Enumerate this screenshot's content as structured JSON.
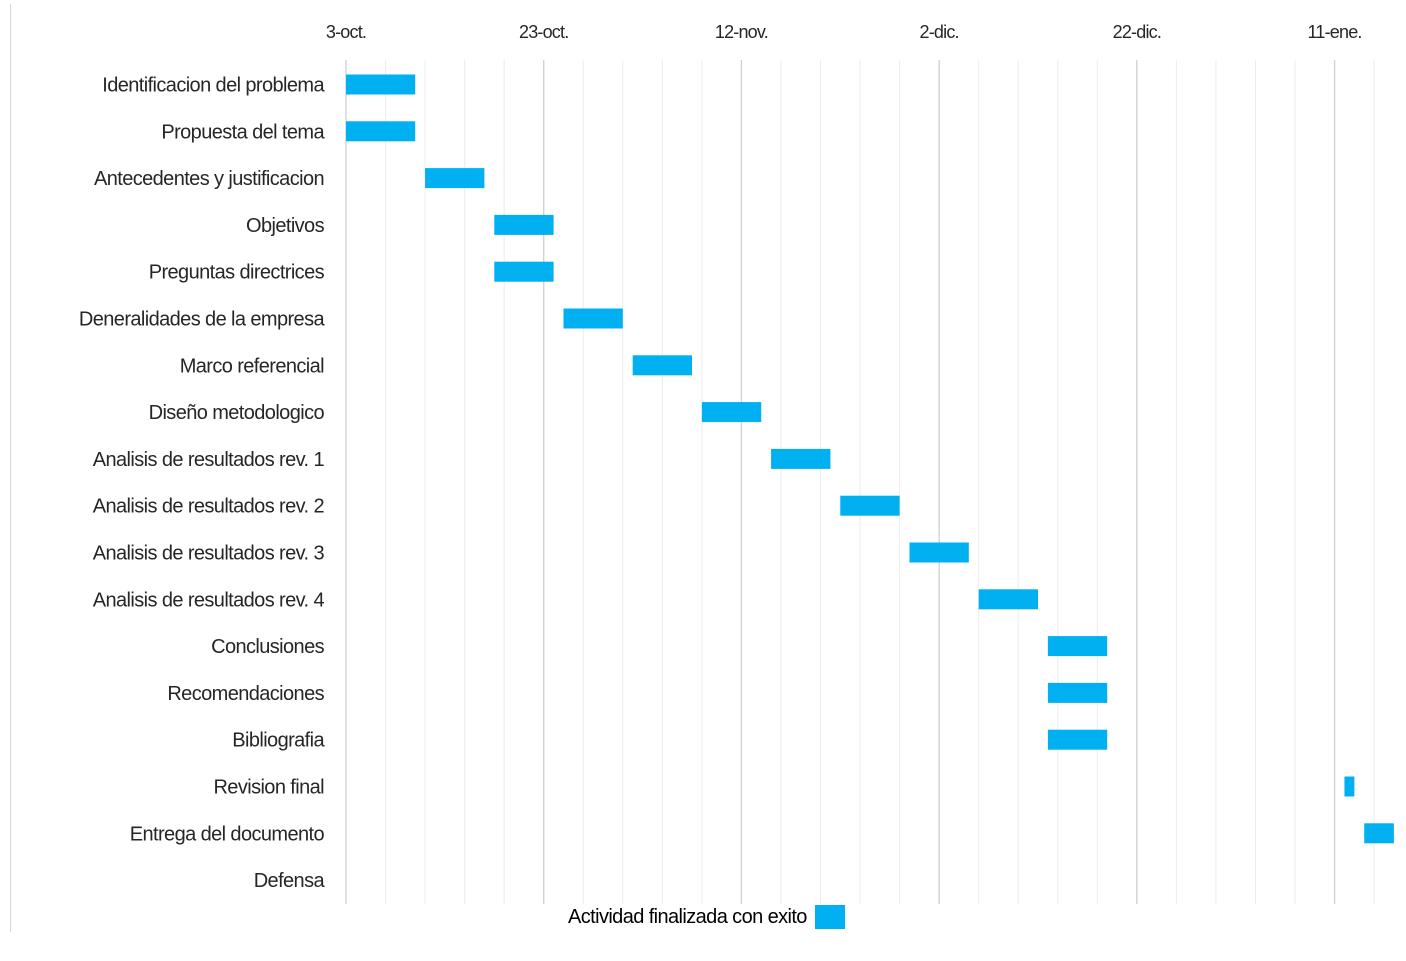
{
  "chart_data": {
    "type": "gantt",
    "x_axis": {
      "type": "date",
      "min": "2023-10-03",
      "max": "2024-01-16",
      "major_ticks": [
        "2023-10-03",
        "2023-10-23",
        "2023-11-12",
        "2023-12-02",
        "2023-12-22",
        "2024-01-11"
      ],
      "tick_labels": [
        "3-oct.",
        "23-oct.",
        "12-nov.",
        "2-dic.",
        "22-dic.",
        "11-ene."
      ],
      "minor_grid_days": 4,
      "position": "top",
      "grid": true
    },
    "bar_color": "#00b0f0",
    "tasks": [
      {
        "name": "Identificacion del problema",
        "start": "2023-10-03",
        "end": "2023-10-10"
      },
      {
        "name": "Propuesta del tema",
        "start": "2023-10-03",
        "end": "2023-10-10"
      },
      {
        "name": "Antecedentes y justificacion",
        "start": "2023-10-11",
        "end": "2023-10-17"
      },
      {
        "name": "Objetivos",
        "start": "2023-10-18",
        "end": "2023-10-24"
      },
      {
        "name": "Preguntas directrices",
        "start": "2023-10-18",
        "end": "2023-10-24"
      },
      {
        "name": "Deneralidades de la empresa",
        "start": "2023-10-25",
        "end": "2023-10-31"
      },
      {
        "name": "Marco referencial",
        "start": "2023-11-01",
        "end": "2023-11-07"
      },
      {
        "name": "Diseño metodologico",
        "start": "2023-11-08",
        "end": "2023-11-14"
      },
      {
        "name": "Analisis de resultados rev. 1",
        "start": "2023-11-15",
        "end": "2023-11-21"
      },
      {
        "name": "Analisis de resultados rev. 2",
        "start": "2023-11-22",
        "end": "2023-11-28"
      },
      {
        "name": "Analisis de resultados rev. 3",
        "start": "2023-11-29",
        "end": "2023-12-05"
      },
      {
        "name": "Analisis de resultados rev. 4",
        "start": "2023-12-06",
        "end": "2023-12-12"
      },
      {
        "name": "Conclusiones",
        "start": "2023-12-13",
        "end": "2023-12-19"
      },
      {
        "name": "Recomendaciones",
        "start": "2023-12-13",
        "end": "2023-12-19"
      },
      {
        "name": "Bibliografia",
        "start": "2023-12-13",
        "end": "2023-12-19"
      },
      {
        "name": "Revision final",
        "start": "2024-01-12",
        "end": "2024-01-13"
      },
      {
        "name": "Entrega del documento",
        "start": "2024-01-14",
        "end": "2024-01-17"
      },
      {
        "name": "Defensa",
        "start": null,
        "end": null
      }
    ],
    "legend": {
      "label": "Actividad finalizada con exito",
      "position": "bottom"
    }
  }
}
